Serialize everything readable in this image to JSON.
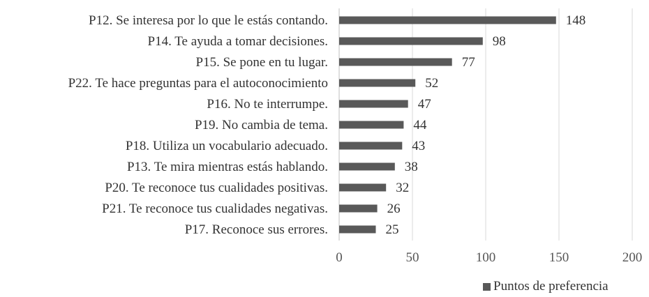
{
  "colors": {
    "bar": "#595959",
    "grid": "#d9d9d9",
    "axis": "#bfbfbf"
  },
  "legend": {
    "label": "Puntos de preferencia"
  },
  "chart_data": {
    "type": "bar",
    "orientation": "horizontal",
    "categories": [
      "P12. Se interesa por lo que le estás contando.",
      "P14. Te ayuda a tomar decisiones.",
      "P15. Se pone en tu lugar.",
      "P22. Te hace preguntas para el autoconocimiento",
      "P16. No te interrumpe.",
      "P19. No cambia de tema.",
      "P18. Utiliza un vocabulario adecuado.",
      "P13. Te mira mientras estás hablando.",
      "P20. Te reconoce tus cualidades positivas.",
      "P21. Te reconoce tus cualidades negativas.",
      "P17. Reconoce sus errores."
    ],
    "series": [
      {
        "name": "Puntos de preferencia",
        "values": [
          148,
          98,
          77,
          52,
          47,
          44,
          43,
          38,
          32,
          26,
          25
        ]
      }
    ],
    "xlim": [
      0,
      200
    ],
    "xticks": [
      0,
      50,
      100,
      150,
      200
    ],
    "grid": true,
    "legend_position": "bottom-right",
    "data_labels": true
  }
}
